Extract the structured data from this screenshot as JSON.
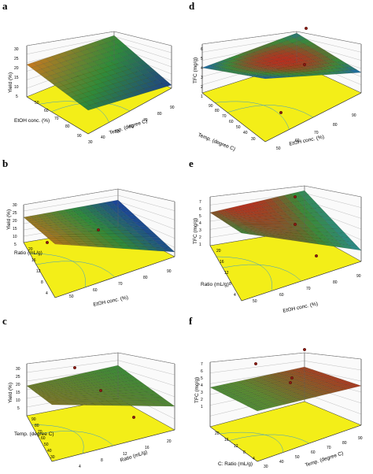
{
  "panels": [
    {
      "letter": "a",
      "zlabel": "Yield (%)",
      "xlabel": "EtOH conc. (%)",
      "ylabel": "Temp. (degree C)",
      "zticks": [
        "30",
        "25",
        "20",
        "15",
        "10",
        "5"
      ],
      "xticks": [
        "50",
        "60",
        "70",
        "80",
        "90"
      ],
      "yticks": [
        "30",
        "40",
        "50",
        "60",
        "70",
        "80",
        "90"
      ]
    },
    {
      "letter": "d",
      "zlabel": "TFC (mg/g)",
      "xlabel": "Temp. (degree C)",
      "ylabel": "EtOH conc. (%)",
      "zticks": [
        "6",
        "5",
        "4",
        "3",
        "2",
        "1"
      ],
      "xticks": [
        "90",
        "80",
        "70",
        "60",
        "50",
        "40",
        "30"
      ],
      "yticks": [
        "90",
        "80",
        "70",
        "60",
        "50"
      ]
    },
    {
      "letter": "b",
      "zlabel": "Yield (%)",
      "xlabel": "Ratio (mL/g)",
      "ylabel": "EtOH conc. (%)",
      "zticks": [
        "30",
        "25",
        "20",
        "15",
        "10",
        "5"
      ],
      "xticks": [
        "20",
        "16",
        "12",
        "8",
        "4"
      ],
      "yticks": [
        "50",
        "60",
        "70",
        "80",
        "90"
      ]
    },
    {
      "letter": "e",
      "zlabel": "TFC (mg/g)",
      "xlabel": "Ratio (mL/g)",
      "ylabel": "EtOH conc. (%)",
      "zticks": [
        "7",
        "6",
        "5",
        "4",
        "3",
        "2",
        "1"
      ],
      "xticks": [
        "20",
        "16",
        "12",
        "8",
        "4"
      ],
      "yticks": [
        "50",
        "60",
        "70",
        "80",
        "90"
      ]
    },
    {
      "letter": "c",
      "zlabel": "Yield (%)",
      "xlabel": "Temp. (degree C)",
      "ylabel": "Ratio (mL/g)",
      "zticks": [
        "30",
        "25",
        "20",
        "15",
        "10",
        "5"
      ],
      "xticks": [
        "90",
        "80",
        "70",
        "60",
        "50",
        "40",
        "30"
      ],
      "yticks": [
        "4",
        "8",
        "12",
        "16",
        "20"
      ]
    },
    {
      "letter": "f",
      "zlabel": "TFC (mg/g)",
      "xlabel": "C: Ratio (mL/g)",
      "ylabel": "Temp. (degree C)",
      "zticks": [
        "7",
        "6",
        "5",
        "4",
        "3",
        "2",
        "1"
      ],
      "xticks": [
        "20",
        "16",
        "12",
        "8",
        "4"
      ],
      "yticks": [
        "30",
        "40",
        "50",
        "60",
        "70",
        "80",
        "90"
      ]
    }
  ],
  "chart_data": [
    {
      "type": "surface",
      "panel": "a",
      "zlabel": "Yield (%)",
      "ylim": [
        0,
        30
      ],
      "trend": "yield highest at low EtOH and low temp, lowest at high EtOH and high temp",
      "colors": {
        "high": "#c8781e",
        "mid": "#2f8a3a",
        "low": "#1a2f9a",
        "base": "#f3ee18"
      }
    },
    {
      "type": "surface",
      "panel": "d",
      "zlabel": "TFC (mg/g)",
      "ylim": [
        0,
        6
      ],
      "trend": "TFC peaks at intermediate temp and EtOH conc.",
      "colors": {
        "high": "#b6301e",
        "mid": "#3a8a38",
        "low": "#1f6aa0",
        "base": "#f3ee18"
      }
    },
    {
      "type": "surface",
      "panel": "b",
      "zlabel": "Yield (%)",
      "ylim": [
        0,
        30
      ],
      "trend": "yield high at high ratio, decreases toward high EtOH",
      "colors": {
        "high": "#b0741e",
        "mid": "#2f8a3a",
        "low": "#1a3fa0",
        "base": "#f3ee18"
      }
    },
    {
      "type": "surface",
      "panel": "e",
      "zlabel": "TFC (mg/g)",
      "ylim": [
        0,
        7
      ],
      "trend": "TFC highest at mid EtOH, decreasing with low ratio",
      "colors": {
        "high": "#b6301e",
        "mid": "#3a8a38",
        "low": "#2b8a8a",
        "base": "#f3ee18"
      }
    },
    {
      "type": "surface",
      "panel": "c",
      "zlabel": "Yield (%)",
      "ylim": [
        0,
        30
      ],
      "trend": "nearly planar, yield slightly higher at high temp, low ratio",
      "colors": {
        "high": "#a0701e",
        "mid": "#3a8a38",
        "low": "#2f7a6a",
        "base": "#f3ee18"
      }
    },
    {
      "type": "surface",
      "panel": "f",
      "zlabel": "TFC (mg/g)",
      "ylim": [
        0,
        7
      ],
      "trend": "TFC increases with temperature, roughly planar",
      "colors": {
        "high": "#b6301e",
        "mid": "#5a8a30",
        "low": "#2f8a4a",
        "base": "#f3ee18"
      }
    }
  ]
}
